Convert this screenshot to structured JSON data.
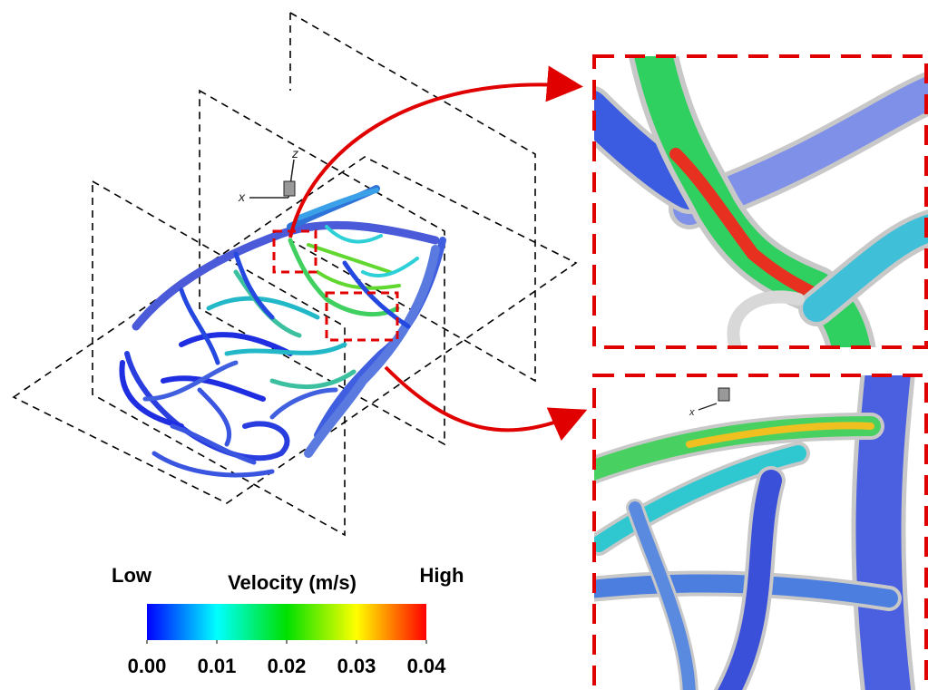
{
  "figure": {
    "main_axes": {
      "x_label": "x",
      "z_label": "z"
    },
    "inset_axes": {
      "x_label": "x"
    },
    "colorbar": {
      "title": "Velocity (m/s)",
      "low_label": "Low",
      "high_label": "High",
      "range": [
        0,
        0.04
      ],
      "colors": [
        "#0000ff",
        "#00ffff",
        "#00e000",
        "#ffff00",
        "#ff0000"
      ],
      "ticks": [
        {
          "value": 0,
          "label": "0.00"
        },
        {
          "value": 0.01,
          "label": "0.01"
        },
        {
          "value": 0.02,
          "label": "0.02"
        },
        {
          "value": 0.03,
          "label": "0.03"
        },
        {
          "value": 0.04,
          "label": "0.04"
        }
      ]
    }
  }
}
